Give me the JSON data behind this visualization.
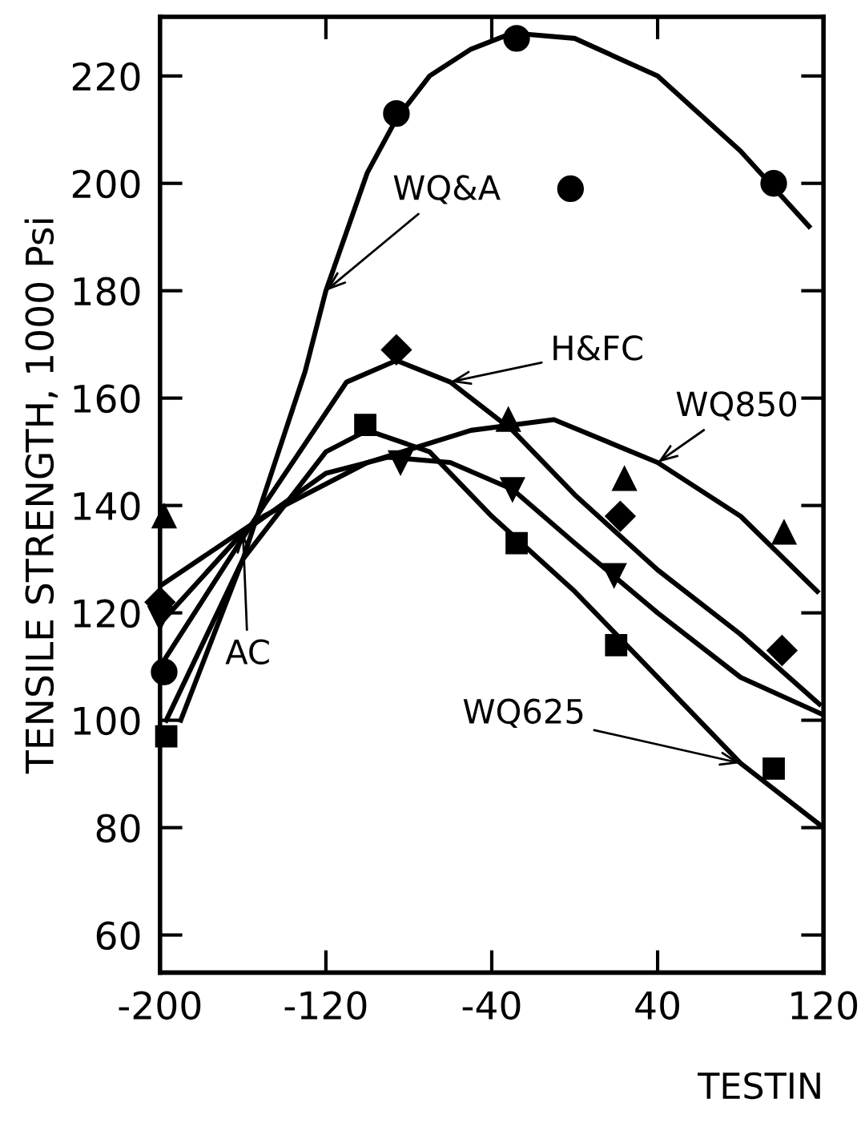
{
  "chart_data": {
    "type": "scatter",
    "ylabel": "TENSILE STRENGTH, 1000 Psi",
    "xlabel": "TESTIN",
    "xlim": [
      -200,
      120
    ],
    "ylim": [
      53,
      231
    ],
    "xticks": [
      -200,
      -120,
      -40,
      40,
      120
    ],
    "yticks": [
      60,
      80,
      100,
      120,
      140,
      160,
      180,
      200,
      220
    ],
    "grid": false,
    "legend": false,
    "series": [
      {
        "marker": "circle",
        "color": "#000000",
        "x": [
          -198,
          -86,
          -28,
          -2,
          96
        ],
        "values": [
          109,
          213,
          227,
          199,
          200
        ]
      },
      {
        "marker": "diamond",
        "color": "#000000",
        "x": [
          -200,
          -86,
          22,
          100
        ],
        "values": [
          122,
          169,
          138,
          113
        ]
      },
      {
        "marker": "triangle",
        "color": "#000000",
        "x": [
          -198,
          -32,
          24,
          101
        ],
        "values": [
          138,
          156,
          145,
          135
        ]
      },
      {
        "marker": "square",
        "color": "#000000",
        "x": [
          -197,
          -101,
          -28,
          20,
          96
        ],
        "values": [
          97,
          155,
          133,
          114,
          91
        ]
      },
      {
        "marker": "triangle_down",
        "color": "#000000",
        "x": [
          -200,
          -84,
          -30,
          19
        ],
        "values": [
          119,
          148,
          143,
          127
        ]
      },
      {
        "type": "line",
        "marker": "none",
        "color": "#000000",
        "x": [
          -190,
          -160,
          -130,
          -120,
          -100,
          -86,
          -70,
          -50,
          -30,
          0,
          40,
          80,
          113
        ],
        "values": [
          100,
          130,
          165,
          180,
          202,
          212,
          220,
          225,
          228,
          227,
          220,
          206,
          192
        ]
      },
      {
        "type": "line",
        "marker": "none",
        "color": "#000000",
        "x": [
          -200,
          -150,
          -110,
          -86,
          -60,
          -30,
          0,
          40,
          80,
          118
        ],
        "values": [
          110,
          140,
          163,
          167,
          163,
          154,
          142,
          128,
          116,
          103
        ]
      },
      {
        "type": "line",
        "marker": "none",
        "color": "#000000",
        "x": [
          -200,
          -150,
          -100,
          -50,
          -10,
          40,
          80,
          117
        ],
        "values": [
          125,
          138,
          148,
          154,
          156,
          148,
          138,
          124
        ]
      },
      {
        "type": "line",
        "marker": "none",
        "color": "#000000",
        "x": [
          -197,
          -160,
          -120,
          -100,
          -70,
          -40,
          0,
          40,
          80,
          120
        ],
        "values": [
          100,
          130,
          150,
          154,
          150,
          138,
          124,
          108,
          92,
          80
        ]
      },
      {
        "type": "line",
        "marker": "none",
        "color": "#000000",
        "x": [
          -200,
          -160,
          -120,
          -90,
          -60,
          -30,
          0,
          40,
          80,
          120
        ],
        "values": [
          118,
          135,
          146,
          149,
          148,
          143,
          133,
          120,
          108,
          101
        ]
      }
    ],
    "annotations": [
      {
        "text": "WQ&A",
        "x": -120,
        "y": 180
      },
      {
        "text": "H&FC",
        "x": -60,
        "y": 163
      },
      {
        "text": "WQ850",
        "x": 40,
        "y": 148
      },
      {
        "text": "AC",
        "x": -160,
        "y": 135
      },
      {
        "text": "WQ625",
        "x": 80,
        "y": 92
      }
    ]
  }
}
